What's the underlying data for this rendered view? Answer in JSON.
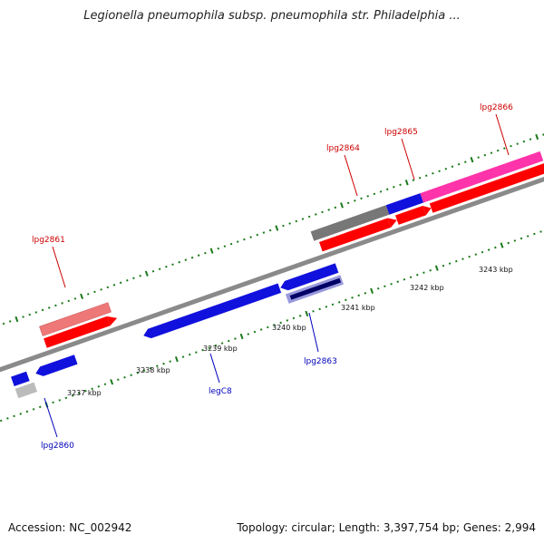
{
  "header": {
    "title": "Legionella pneumophila subsp. pneumophila str. Philadelphia ..."
  },
  "footer": {
    "accession": "Accession: NC_002942",
    "topology": "Topology: circular; Length: 3,397,754 bp; Genes: 2,994"
  },
  "colors": {
    "backbone": "#8a8a8a",
    "tick": "#1a7a1a",
    "label_forward": "#cc0000",
    "label_reverse": "#0000bb",
    "red": "#ff0000",
    "pink_red": "#ee7777",
    "blue": "#1111dd",
    "gray": "#777777",
    "magenta": "#ff33aa",
    "navy": "#000066",
    "light_gray": "#bbbbbb"
  },
  "scale": {
    "kbp_labels": [
      "3237 kbp",
      "3238 kbp",
      "3239 kbp",
      "3240 kbp",
      "3241 kbp",
      "3242 kbp",
      "3243 kbp"
    ]
  },
  "genes": {
    "forward": [
      {
        "id": "lpg2861",
        "label": "lpg2861",
        "color": "pink_red"
      },
      {
        "id": "lpg2864",
        "label": "lpg2864",
        "color": "gray"
      },
      {
        "id": "lpg2865",
        "label": "lpg2865",
        "color": "blue"
      },
      {
        "id": "lpg2866",
        "label": "lpg2866",
        "color": "magenta"
      }
    ],
    "reverse": [
      {
        "id": "lpg2860",
        "label": "lpg2860",
        "color": "blue"
      },
      {
        "id": "legC8",
        "label": "legC8",
        "color": "blue"
      },
      {
        "id": "lpg2863",
        "label": "lpg2863",
        "color": "blue"
      }
    ]
  }
}
